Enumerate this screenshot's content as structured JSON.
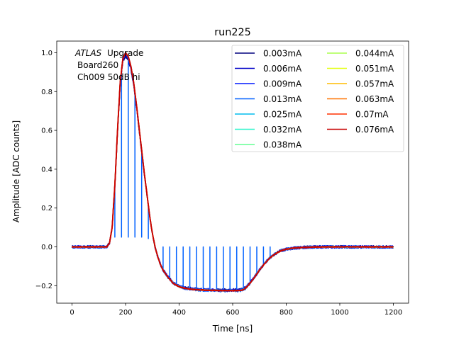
{
  "chart_data": {
    "type": "line",
    "title": "run225",
    "xlabel": "Time [ns]",
    "ylabel": "Amplitude [ADC counts]",
    "xlim": [
      -57,
      1257
    ],
    "ylim": [
      -0.29,
      1.06
    ],
    "xticks": [
      0,
      200,
      400,
      600,
      800,
      1000,
      1200
    ],
    "yticks": [
      -0.2,
      0.0,
      0.2,
      0.4,
      0.6,
      0.8,
      1.0
    ],
    "xtick_labels": [
      "0",
      "200",
      "400",
      "600",
      "800",
      "1000",
      "1200"
    ],
    "ytick_labels": [
      "−0.2",
      "0.0",
      "0.2",
      "0.4",
      "0.6",
      "0.8",
      "1.0"
    ],
    "grid": false,
    "legend_position": "top-right",
    "legend_columns": 2,
    "annotation": {
      "atlas": "ATLAS",
      "upgrade": "Upgrade",
      "line2": "Board260",
      "line3": "Ch009 50dB hi"
    },
    "waveform": {
      "x": [
        0,
        60,
        100,
        130,
        140,
        150,
        160,
        170,
        180,
        190,
        200,
        210,
        220,
        230,
        240,
        250,
        260,
        270,
        280,
        290,
        300,
        310,
        320,
        330,
        340,
        360,
        380,
        400,
        420,
        450,
        480,
        500,
        550,
        600,
        620,
        630,
        640,
        650,
        660,
        680,
        700,
        720,
        740,
        760,
        780,
        800,
        830,
        860,
        900,
        950,
        1000,
        1100,
        1200
      ],
      "y": [
        0.0,
        0.0,
        0.0,
        0.0,
        0.02,
        0.1,
        0.32,
        0.6,
        0.85,
        0.97,
        1.0,
        0.98,
        0.93,
        0.85,
        0.74,
        0.62,
        0.5,
        0.38,
        0.27,
        0.16,
        0.07,
        0.0,
        -0.05,
        -0.09,
        -0.12,
        -0.16,
        -0.19,
        -0.205,
        -0.213,
        -0.219,
        -0.222,
        -0.223,
        -0.225,
        -0.225,
        -0.225,
        -0.224,
        -0.22,
        -0.21,
        -0.195,
        -0.16,
        -0.12,
        -0.085,
        -0.055,
        -0.035,
        -0.02,
        -0.012,
        -0.006,
        -0.003,
        -0.001,
        0.0,
        0.0,
        0.0,
        0.0
      ]
    },
    "spike_series": "0.013mA",
    "spike_x": [
      160,
      185,
      210,
      235,
      260,
      285,
      340,
      365,
      390,
      415,
      440,
      465,
      490,
      515,
      540,
      565,
      590,
      615,
      640,
      665,
      690,
      715,
      740
    ],
    "series": [
      {
        "name": "0.003mA",
        "color": "#00007f",
        "scale": 0.985
      },
      {
        "name": "0.006mA",
        "color": "#0000c8",
        "scale": 0.99
      },
      {
        "name": "0.009mA",
        "color": "#0018ff",
        "scale": 0.995
      },
      {
        "name": "0.013mA",
        "color": "#0060ff",
        "scale": 1.0
      },
      {
        "name": "0.025mA",
        "color": "#00bcee",
        "scale": 1.0
      },
      {
        "name": "0.032mA",
        "color": "#2ff4cb",
        "scale": 1.0
      },
      {
        "name": "0.038mA",
        "color": "#63ff94",
        "scale": 1.0
      },
      {
        "name": "0.044mA",
        "color": "#aaff4d",
        "scale": 1.0
      },
      {
        "name": "0.051mA",
        "color": "#e4ff13",
        "scale": 1.0
      },
      {
        "name": "0.057mA",
        "color": "#ffbc00",
        "scale": 1.0
      },
      {
        "name": "0.063mA",
        "color": "#ff7200",
        "scale": 1.0
      },
      {
        "name": "0.07mA",
        "color": "#ff3000",
        "scale": 1.0
      },
      {
        "name": "0.076mA",
        "color": "#c80000",
        "scale": 1.0
      }
    ]
  }
}
